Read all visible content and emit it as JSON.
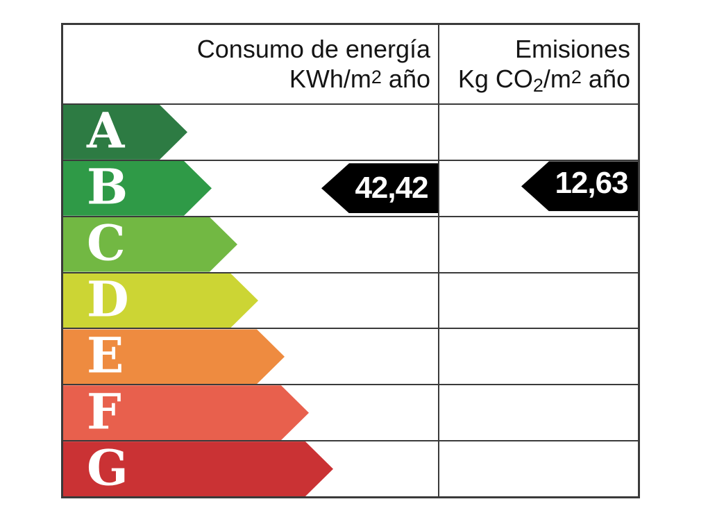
{
  "header": {
    "consumption": {
      "title": "Consumo de energía",
      "unit_pre": "KWh/m",
      "unit_sup": "2",
      "unit_post": " año"
    },
    "emissions": {
      "title": "Emisiones",
      "unit_pre": "Kg CO",
      "unit_sub": "2",
      "unit_mid": "/m",
      "unit_sup": "2",
      "unit_post": " año"
    }
  },
  "ratings": [
    {
      "letter": "A",
      "color": "#2d7b43",
      "arrow_width": 179
    },
    {
      "letter": "B",
      "color": "#2f9a47",
      "arrow_width": 214
    },
    {
      "letter": "C",
      "color": "#72b843",
      "arrow_width": 251
    },
    {
      "letter": "D",
      "color": "#ccd534",
      "arrow_width": 281
    },
    {
      "letter": "E",
      "color": "#ee8b40",
      "arrow_width": 319
    },
    {
      "letter": "F",
      "color": "#e8604d",
      "arrow_width": 354
    },
    {
      "letter": "G",
      "color": "#ca3234",
      "arrow_width": 389
    }
  ],
  "values": {
    "rating": "B",
    "consumption": "42,42",
    "emissions": "12,63",
    "arrow_color": "#000000",
    "text_color": "#ffffff"
  },
  "grid_color": "#3a3a3a",
  "chart_data": {
    "type": "bar",
    "title": "",
    "categories": [
      "A",
      "B",
      "C",
      "D",
      "E",
      "F",
      "G"
    ],
    "bar_colors": [
      "#2d7b43",
      "#2f9a47",
      "#72b843",
      "#ccd534",
      "#ee8b40",
      "#e8604d",
      "#ca3234"
    ],
    "relative_bar_lengths": [
      179,
      214,
      251,
      281,
      319,
      354,
      389
    ],
    "columns": [
      "Consumo de energía KWh/m2 año",
      "Emisiones Kg CO2/m2 año"
    ],
    "series": [
      {
        "name": "Consumo de energía KWh/m2 año",
        "rating": "B",
        "value": 42.42
      },
      {
        "name": "Emisiones Kg CO2/m2 año",
        "rating": "B",
        "value": 12.63
      }
    ],
    "legend_position": "none",
    "grid": true
  }
}
